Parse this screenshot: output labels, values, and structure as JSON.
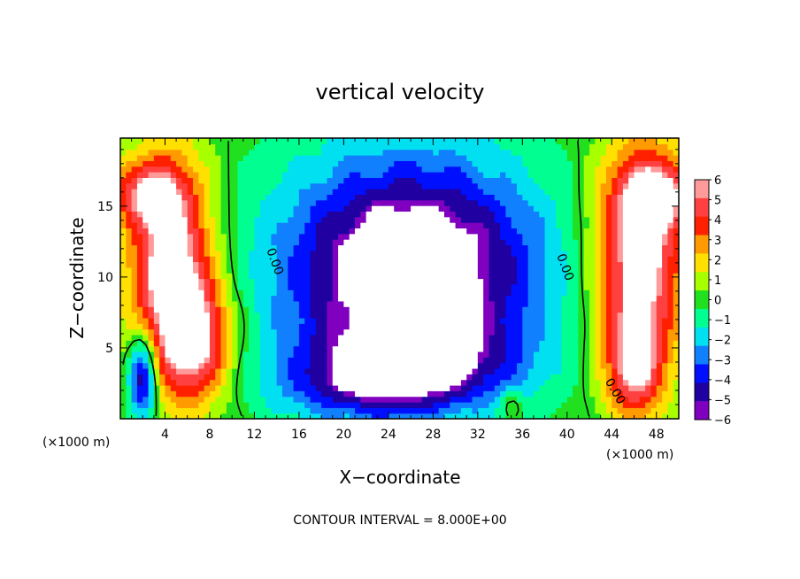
{
  "chart_data": {
    "type": "heatmap",
    "title": "vertical velocity",
    "xlabel": "X−coordinate",
    "ylabel": "Z−coordinate",
    "x_unit_label": "(×1000 m)",
    "x_unit_label_right": "(×1000 m)",
    "xlim": [
      0,
      50
    ],
    "ylim": [
      0,
      19.8
    ],
    "x_ticks": [
      4,
      8,
      12,
      16,
      20,
      24,
      28,
      32,
      36,
      40,
      44,
      48
    ],
    "x_tick_labels": [
      "4",
      "8",
      "12",
      "16",
      "20",
      "24",
      "28",
      "32",
      "36",
      "40",
      "44",
      "48"
    ],
    "y_ticks": [
      5,
      10,
      15
    ],
    "y_tick_labels": [
      "5",
      "10",
      "15"
    ],
    "contour_labels": [
      "0.00",
      "0.00",
      "0.00"
    ],
    "colorbar": {
      "levels": [
        6,
        5,
        4,
        3,
        2,
        1,
        0,
        -1,
        -2,
        -3,
        -4,
        -5,
        -6
      ],
      "labels": [
        "6",
        "5",
        "4",
        "3",
        "2",
        "1",
        "0",
        "−1",
        "−2",
        "−3",
        "−4",
        "−5",
        "−6"
      ],
      "colors": [
        "#ff9a9a",
        "#ff4040",
        "#ff2000",
        "#ff9a00",
        "#ffe000",
        "#a8ff00",
        "#20e020",
        "#00ff90",
        "#00e0f0",
        "#1080ff",
        "#0010ff",
        "#2000a0",
        "#8000c0"
      ],
      "saturated_color": "#ffffff"
    },
    "contour_note": "CONTOUR INTERVAL = 8.000E+00",
    "field_features": [
      {
        "kind": "updraft",
        "x": 4.5,
        "z": 10.5,
        "sx": 2.6,
        "sz": 5.5,
        "w": 7.5
      },
      {
        "kind": "updraft",
        "x": 7.0,
        "z": 5.5,
        "sx": 2.2,
        "sz": 3.0,
        "w": 5.0
      },
      {
        "kind": "updraft",
        "x": 2.0,
        "z": 16.0,
        "sx": 2.5,
        "sz": 1.6,
        "w": 4.0
      },
      {
        "kind": "updraft",
        "x": 46.5,
        "z": 11.5,
        "sx": 2.8,
        "sz": 5.5,
        "w": 7.5
      },
      {
        "kind": "updraft",
        "x": 48.5,
        "z": 16.0,
        "sx": 2.5,
        "sz": 1.6,
        "w": 4.0
      },
      {
        "kind": "updraft",
        "x": 46.0,
        "z": 3.5,
        "sx": 1.8,
        "sz": 2.5,
        "w": 5.0
      },
      {
        "kind": "downdraft",
        "x": 26.0,
        "z": 10.5,
        "sx": 8.0,
        "sz": 5.5,
        "w": -8.5
      },
      {
        "kind": "downdraft",
        "x": 26.0,
        "z": 4.0,
        "sx": 6.5,
        "sz": 2.0,
        "w": -4.0
      },
      {
        "kind": "downdraft",
        "x": 22.0,
        "z": 2.0,
        "sx": 6.0,
        "sz": 1.6,
        "w": -2.5
      },
      {
        "kind": "downdraft",
        "x": 2.0,
        "z": 3.0,
        "sx": 0.9,
        "sz": 2.2,
        "w": -6.5
      },
      {
        "kind": "updraft",
        "x": 35.0,
        "z": 1.0,
        "sx": 0.7,
        "sz": 0.7,
        "w": 2.0
      }
    ]
  }
}
